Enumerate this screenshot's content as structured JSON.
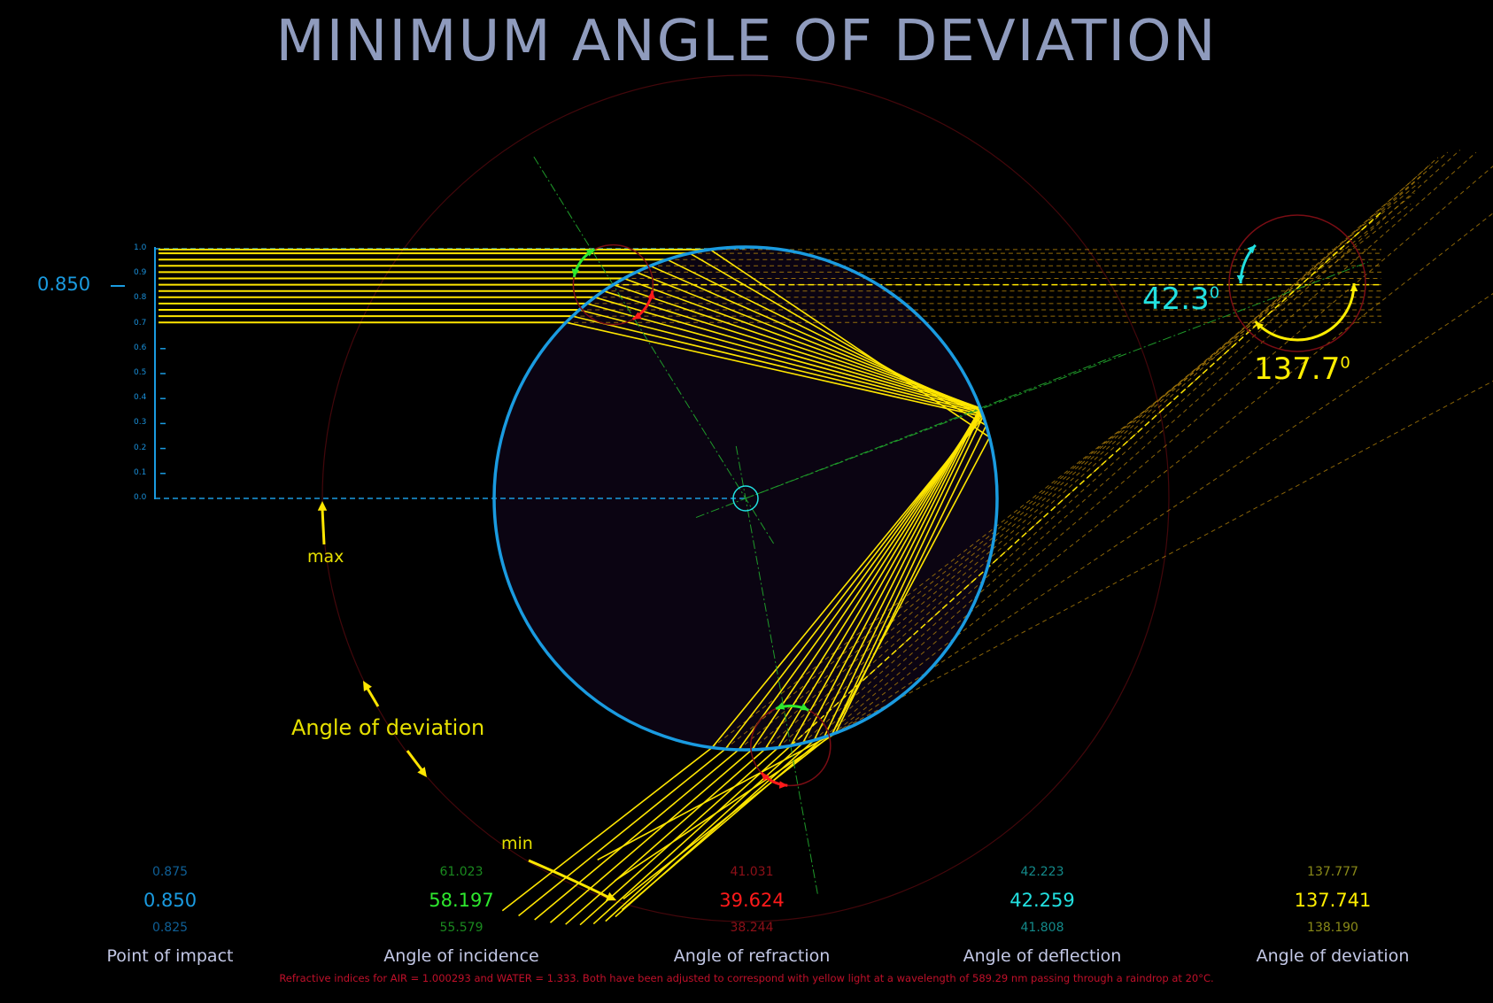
{
  "title": "MINIMUM ANGLE OF DEVIATION",
  "colors": {
    "background": "#000000",
    "title": "#8f9bbd",
    "drop_outline": "#1a9be0",
    "drop_fill": "#0b0412",
    "ray": "#ffe600",
    "ray_faint": "#b8860b",
    "normal_line": "#1f9a2a",
    "guide_circle": "#7a0d14",
    "impact": "#1a9be0",
    "incidence": "#2ee82e",
    "refraction": "#ff1a1a",
    "deflection": "#22e0e0",
    "deviation": "#ffee00",
    "footnote": "#c0102a"
  },
  "axis": {
    "ticks": [
      "1.0",
      "0.9",
      "0.8",
      "0.7",
      "0.6",
      "0.5",
      "0.4",
      "0.3",
      "0.2",
      "0.1",
      "0.0"
    ],
    "current_value_label": "0.850"
  },
  "annotations": {
    "deflection_angle": "42.3",
    "deviation_angle": "137.7",
    "degree_symbol": "0",
    "max_label": "max",
    "min_label": "min",
    "angle_of_deviation_label": "Angle of deviation"
  },
  "stats": [
    {
      "name": "Point of impact",
      "upper": "0.875",
      "value": "0.850",
      "lower": "0.825",
      "color_key": "impact"
    },
    {
      "name": "Angle of  incidence",
      "upper": "61.023",
      "value": "58.197",
      "lower": "55.579",
      "color_key": "incidence"
    },
    {
      "name": "Angle of refraction",
      "upper": "41.031",
      "value": "39.624",
      "lower": "38.244",
      "color_key": "refraction"
    },
    {
      "name": "Angle of deflection",
      "upper": "42.223",
      "value": "42.259",
      "lower": "41.808",
      "color_key": "deflection"
    },
    {
      "name": "Angle of  deviation",
      "upper": "137.777",
      "value": "137.741",
      "lower": "138.190",
      "color_key": "deviation"
    }
  ],
  "footnote": "Refractive indices for AIR = 1.000293 and WATER = 1.333. Both have been adjusted to correspond with yellow light at a wavelength of 589.29 nm passing through a raindrop at 20°C."
}
